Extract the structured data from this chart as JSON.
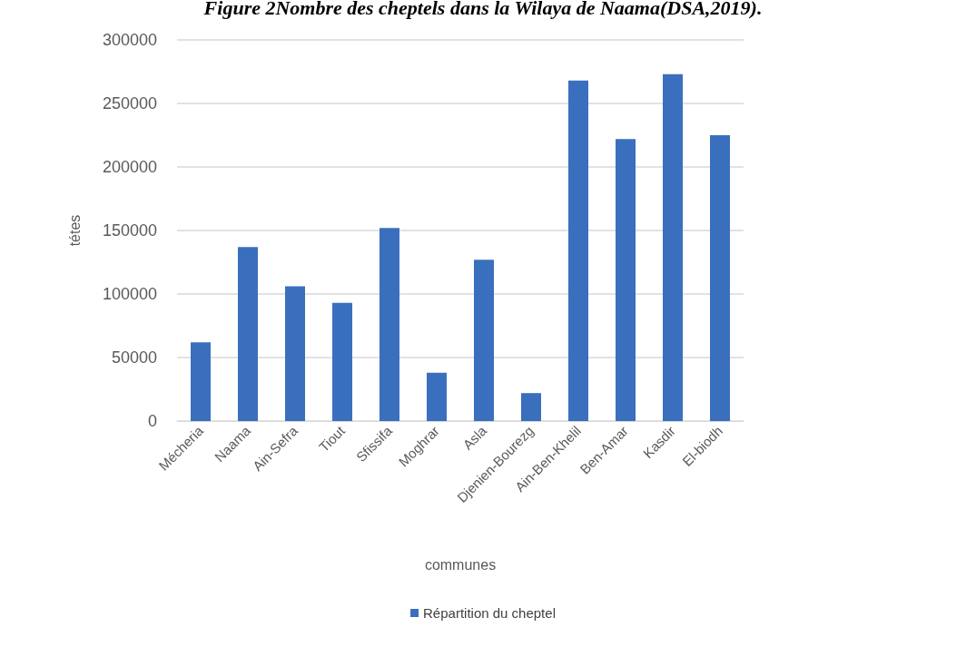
{
  "chart_data": {
    "type": "bar",
    "title": "Figure 2Nombre des cheptels dans la Wilaya de Naama(DSA,2019).",
    "xlabel": "communes",
    "ylabel": "tétes",
    "categories": [
      "Mécheria",
      "Naama",
      "Ain-Sefra",
      "Tiout",
      "Sfissifa",
      "Moghrar",
      "Asla",
      "Djenien-Bourezg",
      "Ain-Ben-Khelil",
      "Ben-Amar",
      "Kasdir",
      "El-biodh"
    ],
    "series": [
      {
        "name": "Répartition du cheptel",
        "color": "#3a6fbe",
        "values": [
          62000,
          137000,
          106000,
          93000,
          152000,
          38000,
          127000,
          22000,
          268000,
          222000,
          273000,
          225000
        ]
      }
    ],
    "ylim": [
      0,
      300000
    ],
    "yticks": [
      0,
      50000,
      100000,
      150000,
      200000,
      250000,
      300000
    ],
    "grid": "y",
    "legend": "bottom"
  }
}
